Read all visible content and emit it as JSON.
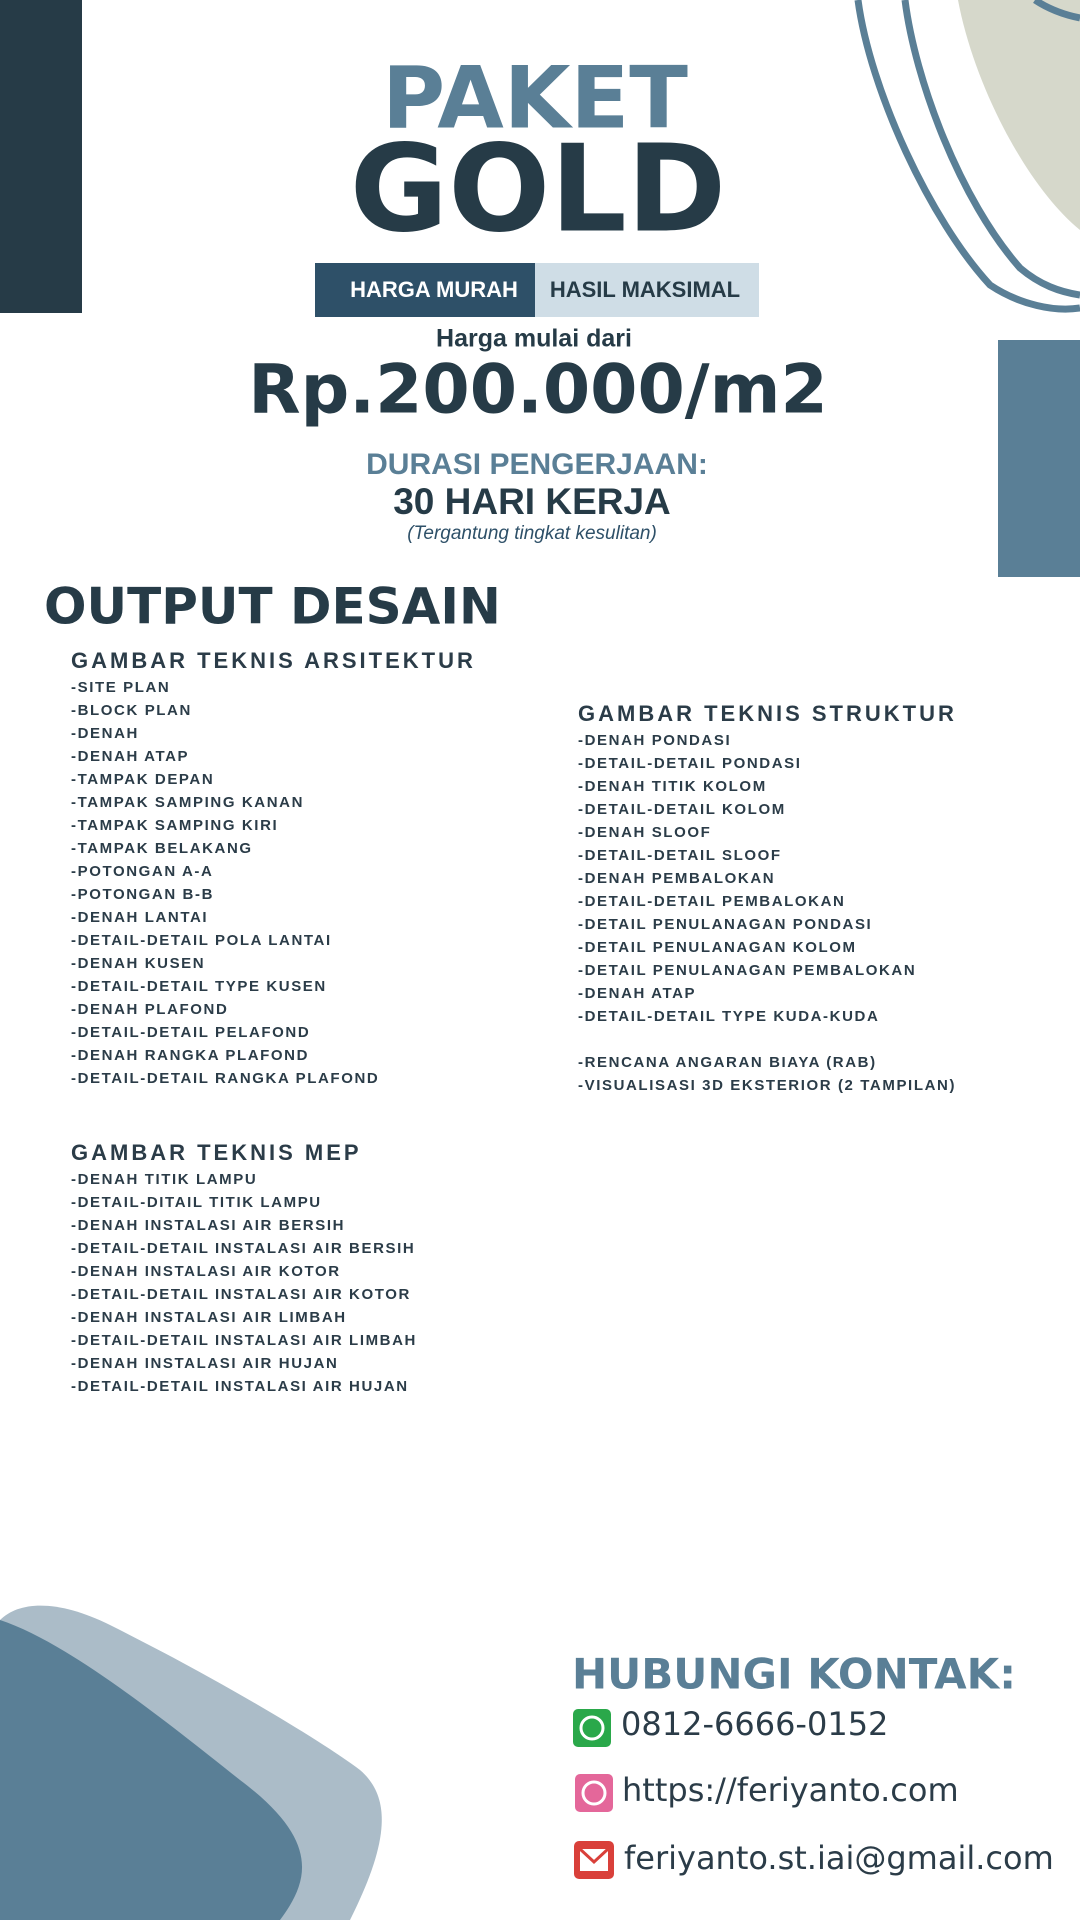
{
  "header": {
    "line1": "PAKET",
    "line2": "GOLD",
    "badge_left": "HARGA MURAH",
    "badge_right": "HASIL MAKSIMAL",
    "price_label": "Harga mulai dari",
    "price": "Rp.200.000/m2",
    "duration_label": "DURASI PENGERJAAN:",
    "duration": "30 HARI KERJA",
    "duration_note": "(Tergantung tingkat kesulitan)"
  },
  "output": {
    "title": "OUTPUT DESAIN",
    "arsitektur": {
      "title": "GAMBAR TEKNIS ARSITEKTUR",
      "items": [
        "-SITE PLAN",
        "-BLOCK PLAN",
        "-DENAH",
        "-DENAH ATAP",
        "-TAMPAK DEPAN",
        "-TAMPAK SAMPING KANAN",
        "-TAMPAK SAMPING KIRI",
        "-TAMPAK BELAKANG",
        "-POTONGAN A-A",
        "-POTONGAN B-B",
        "-DENAH LANTAI",
        "-DETAIL-DETAIL POLA LANTAI",
        "-DENAH KUSEN",
        "-DETAIL-DETAIL TYPE KUSEN",
        "-DENAH PLAFOND",
        "-DETAIL-DETAIL PELAFOND",
        "-DENAH RANGKA PLAFOND",
        "-DETAIL-DETAIL RANGKA PLAFOND"
      ]
    },
    "struktur": {
      "title": "GAMBAR TEKNIS STRUKTUR",
      "items": [
        "-DENAH PONDASI",
        "-DETAIL-DETAIL PONDASI",
        "-DENAH TITIK KOLOM",
        "-DETAIL-DETAIL KOLOM",
        "-DENAH SLOOF",
        "-DETAIL-DETAIL SLOOF",
        "-DENAH PEMBALOKAN",
        "-DETAIL-DETAIL PEMBALOKAN",
        "-DETAIL PENULANAGAN PONDASI",
        "-DETAIL PENULANAGAN KOLOM",
        "-DETAIL PENULANAGAN PEMBALOKAN",
        "-DENAH ATAP",
        "-DETAIL-DETAIL TYPE KUDA-KUDA"
      ],
      "extras": [
        "-RENCANA ANGARAN BIAYA (RAB)",
        "-VISUALISASI 3D EKSTERIOR (2 TAMPILAN)"
      ]
    },
    "mep": {
      "title": "GAMBAR TEKNIS MEP",
      "items": [
        "-DENAH TITIK LAMPU",
        "-DETAIL-DITAIL TITIK LAMPU",
        "-DENAH INSTALASI AIR BERSIH",
        "-DETAIL-DETAIL INSTALASI AIR BERSIH",
        "-DENAH INSTALASI AIR KOTOR",
        "-DETAIL-DETAIL INSTALASI AIR KOTOR",
        "-DENAH INSTALASI AIR LIMBAH",
        "-DETAIL-DETAIL INSTALASI AIR LIMBAH",
        "-DENAH INSTALASI AIR HUJAN",
        "-DETAIL-DETAIL INSTALASI AIR HUJAN"
      ]
    }
  },
  "contact": {
    "title": "HUBUNGI KONTAK:",
    "phone": "0812-6666-0152",
    "website": "https://feriyanto.com",
    "email": "feriyanto.st.iai@gmail.com"
  }
}
